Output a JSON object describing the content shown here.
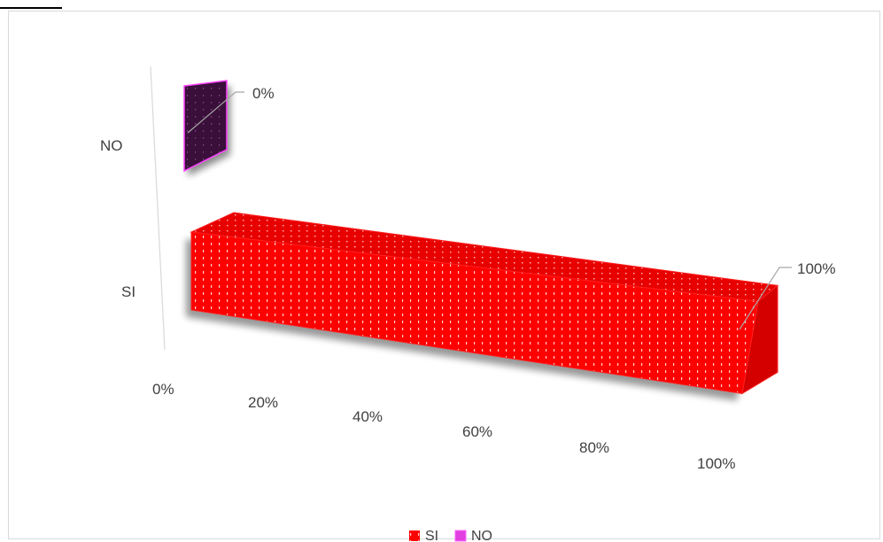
{
  "chart_data": {
    "type": "bar",
    "orientation": "horizontal",
    "style": "3d",
    "categories": [
      "SI",
      "NO"
    ],
    "values": [
      100,
      0
    ],
    "data_labels": [
      "100%",
      "0%"
    ],
    "xlim": [
      0,
      100
    ],
    "x_ticks": [
      "0%",
      "20%",
      "40%",
      "60%",
      "80%",
      "100%"
    ],
    "legend": {
      "position": "bottom",
      "entries": [
        {
          "label": "SI",
          "color": "#ff0000"
        },
        {
          "label": "NO",
          "color": "#e040e0"
        }
      ]
    },
    "grid": false
  }
}
